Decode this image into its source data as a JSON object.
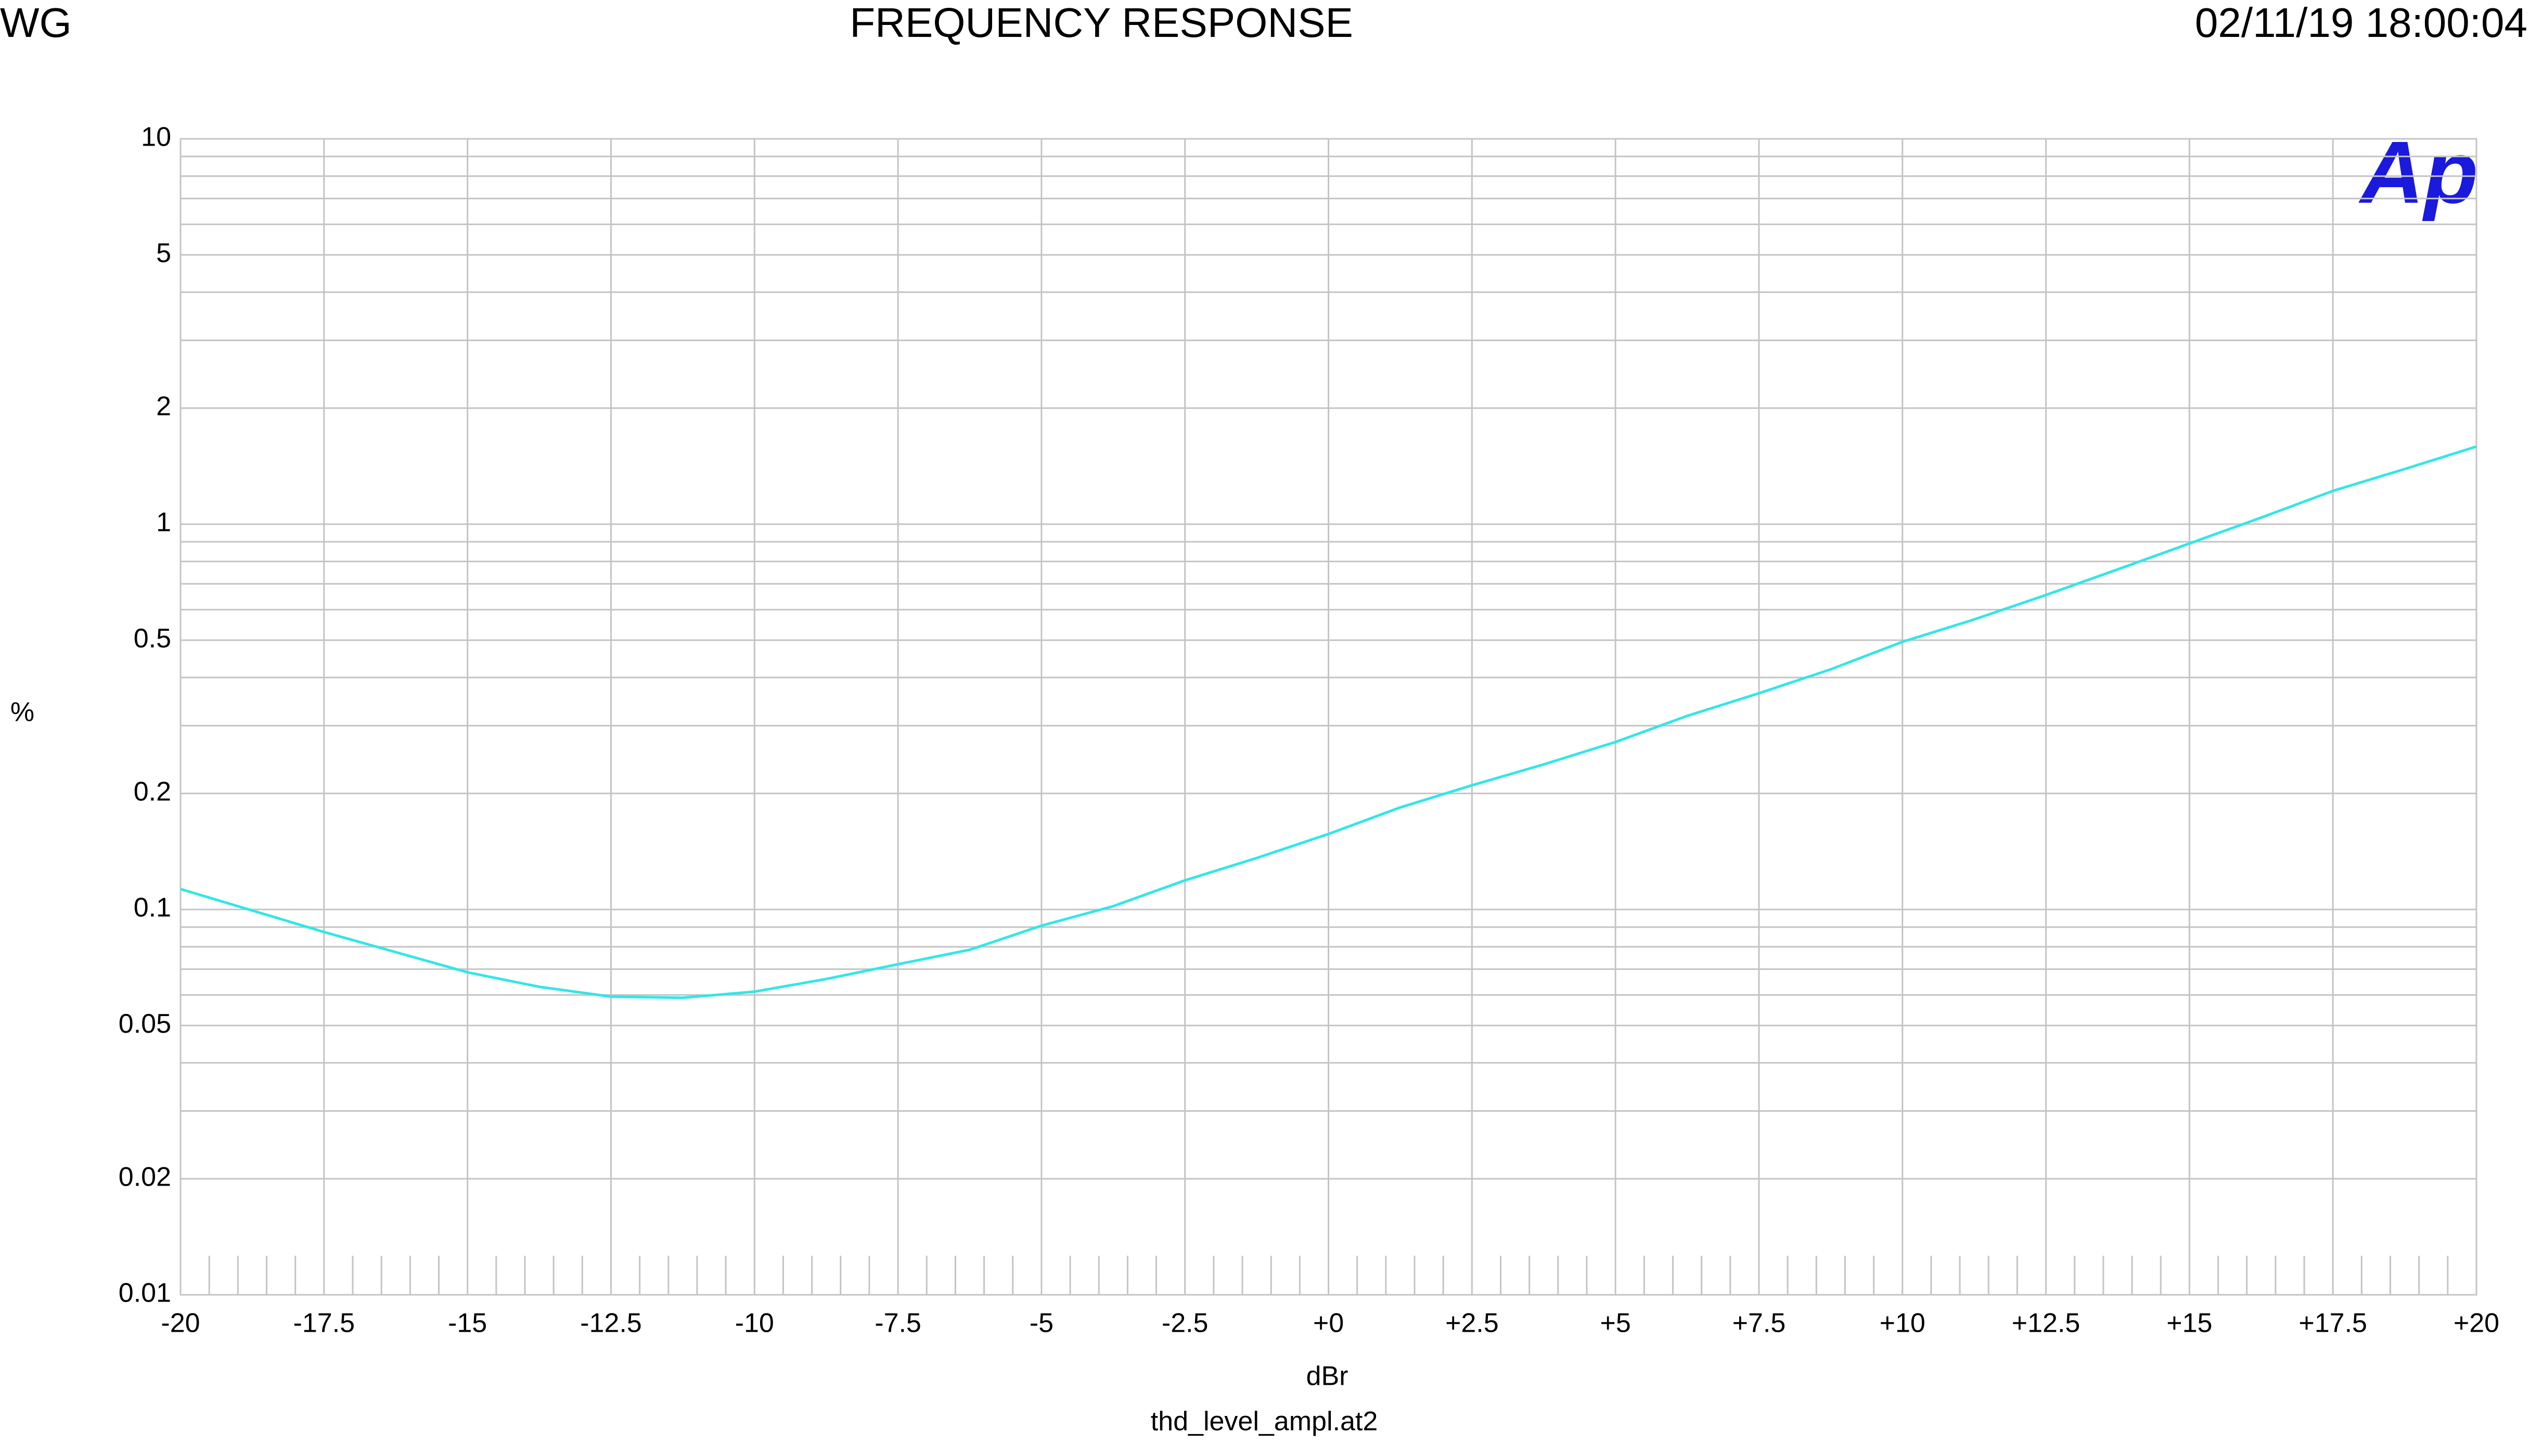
{
  "chart_data": {
    "type": "line",
    "title": "FREQUENCY RESPONSE",
    "header_left": "WG",
    "header_right": "02/11/19 18:00:04",
    "xlabel": "dBr",
    "ylabel": "%",
    "footer": "thd_level_ampl.at2",
    "logo": "Ap",
    "color": "#33e6e6",
    "log_y": true,
    "grid": true,
    "x": [
      -20,
      -17.5,
      -15,
      -13.75,
      -12.5,
      -11.25,
      -10,
      -8.75,
      -7.5,
      -6.25,
      -5,
      -3.75,
      -2.5,
      -1.25,
      0,
      1.25,
      2.5,
      3.75,
      5,
      6.25,
      7.5,
      8.75,
      10,
      11.25,
      12.5,
      13.75,
      15,
      16.25,
      17.5,
      18.75,
      20
    ],
    "values": [
      0.113,
      0.0874,
      0.0687,
      0.063,
      0.0594,
      0.059,
      0.0612,
      0.066,
      0.0721,
      0.0786,
      0.0908,
      0.102,
      0.119,
      0.136,
      0.157,
      0.184,
      0.21,
      0.238,
      0.272,
      0.318,
      0.364,
      0.42,
      0.495,
      0.566,
      0.655,
      0.763,
      0.891,
      1.04,
      1.22,
      1.39,
      1.59
    ],
    "xlim": [
      -20,
      20
    ],
    "xticks": [
      -20,
      -17.5,
      -15,
      -12.5,
      -10,
      -7.5,
      -5,
      -2.5,
      {
        "value": 0,
        "label": "+0"
      },
      {
        "value": 2.5,
        "label": "+2.5"
      },
      {
        "value": 5,
        "label": "+5"
      },
      {
        "value": 7.5,
        "label": "+7.5"
      },
      {
        "value": 10,
        "label": "+10"
      },
      {
        "value": 12.5,
        "label": "+12.5"
      },
      {
        "value": 15,
        "label": "+15"
      },
      {
        "value": 17.5,
        "label": "+17.5"
      },
      {
        "value": 20,
        "label": "+20"
      }
    ],
    "ylim": [
      0.01,
      10
    ],
    "yticks": [
      0.01,
      0.02,
      0.05,
      0.1,
      0.2,
      0.5,
      1,
      2,
      5,
      10
    ],
    "yminorticks": [
      0.03,
      0.04,
      0.06,
      0.07,
      0.08,
      0.09,
      0.3,
      0.4,
      0.6,
      0.7,
      0.8,
      0.9,
      3,
      4,
      6,
      7,
      8,
      9
    ]
  }
}
